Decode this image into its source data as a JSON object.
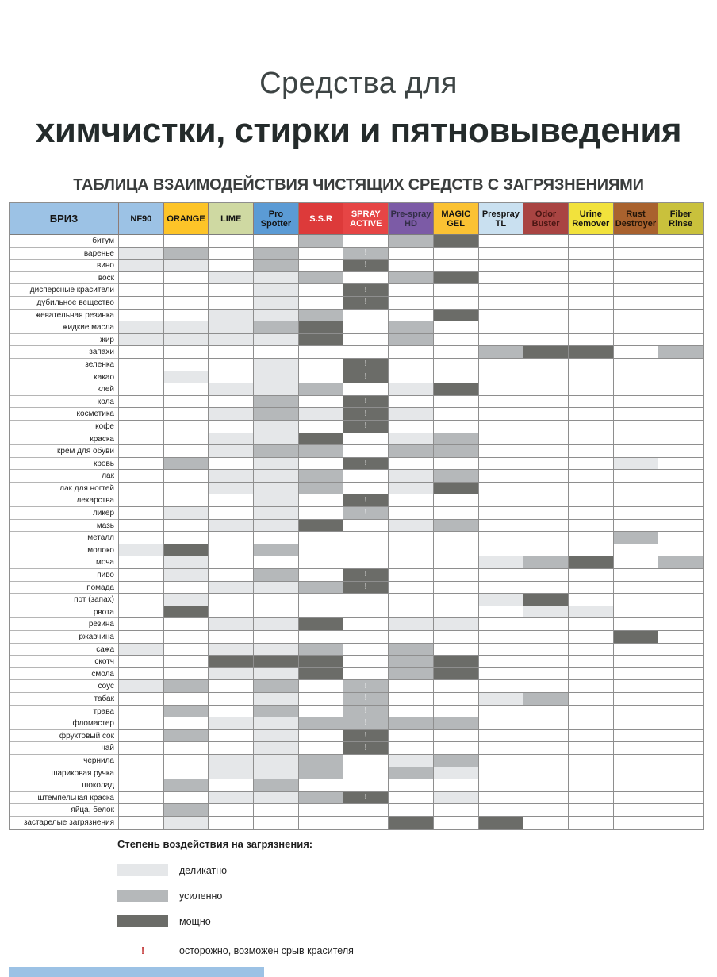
{
  "page": {
    "title_line1": "Средства для",
    "title_line2": "химчистки, стирки и пятновыведения",
    "subtitle": "ТАБЛИЦА ВЗАИМОДЕЙСТВИЯ ЧИСТЯЩИХ СРЕДСТВ С ЗАГРЯЗНЕНИЯМИ"
  },
  "table": {
    "brand_header": "БРИЗ",
    "brand_bg": "#9cc2e5",
    "brand_fg": "#141414",
    "columns": [
      {
        "label": "NF90",
        "bg": "#9cc2e5",
        "fg": "#141414"
      },
      {
        "label": "ORANGE",
        "bg": "#fdc428",
        "fg": "#141414"
      },
      {
        "label": "LIME",
        "bg": "#cfd9a2",
        "fg": "#141414"
      },
      {
        "label": "Pro Spotter",
        "bg": "#5b9bd5",
        "fg": "#141414"
      },
      {
        "label": "S.S.R",
        "bg": "#dd3a3a",
        "fg": "#ffffff"
      },
      {
        "label": "SPRAY ACTIVE",
        "bg": "#e64545",
        "fg": "#ffffff"
      },
      {
        "label": "Pre-spray HD",
        "bg": "#7c5ba6",
        "fg": "#322e47"
      },
      {
        "label": "MAGIC GEL",
        "bg": "#fbc233",
        "fg": "#141414"
      },
      {
        "label": "Prespray TL",
        "bg": "#c9e0f0",
        "fg": "#141414"
      },
      {
        "label": "Odor Buster",
        "bg": "#a94442",
        "fg": "#4a1512"
      },
      {
        "label": "Urine Remover",
        "bg": "#f2e23c",
        "fg": "#141414"
      },
      {
        "label": "Rust Destroyer",
        "bg": "#a9622e",
        "fg": "#231509"
      },
      {
        "label": "Fiber Rinse",
        "bg": "#c9c13c",
        "fg": "#141414"
      }
    ]
  },
  "legend": {
    "heading": "Степень воздействия на загрязнения:",
    "items": [
      {
        "level": "1",
        "label": "деликатно"
      },
      {
        "level": "2",
        "label": "усиленно"
      },
      {
        "level": "3",
        "label": "мощно"
      }
    ],
    "warning": {
      "symbol": "!",
      "label": "осторожно, возможен срыв красителя"
    }
  },
  "colors": {
    "light": "#e5e7e9",
    "medium": "#b5b8ba",
    "dark": "#6b6c68",
    "warning_red": "#c43b3b",
    "header_blue": "#9cc2e5"
  },
  "chart_data": {
    "type": "heatmap",
    "title": "ТАБЛИЦА ВЗАИМОДЕЙСТВИЯ ЧИСТЯЩИХ СРЕДСТВ С ЗАГРЯЗНЕНИЯМИ",
    "value_scale": {
      "0": "нет",
      "1": "деликатно",
      "2": "усиленно",
      "3": "мощно",
      "!": "осторожно, возможен срыв красителя"
    },
    "columns": [
      "NF90",
      "ORANGE",
      "LIME",
      "Pro Spotter",
      "S.S.R",
      "SPRAY ACTIVE",
      "Pre-spray HD",
      "MAGIC GEL",
      "Prespray TL",
      "Odor Buster",
      "Urine Remover",
      "Rust Destroyer",
      "Fiber Rinse"
    ],
    "rows": [
      "битум",
      "варенье",
      "вино",
      "воск",
      "дисперсные красители",
      "дубильное вещество",
      "жевательная резинка",
      "жидкие масла",
      "жир",
      "запахи",
      "зеленка",
      "какао",
      "клей",
      "кола",
      "косметика",
      "кофе",
      "краска",
      "крем для обуви",
      "кровь",
      "лак",
      "лак для ногтей",
      "лекарства",
      "ликер",
      "мазь",
      "металл",
      "молоко",
      "моча",
      "пиво",
      "помада",
      "пот (запах)",
      "рвота",
      "резина",
      "ржавчина",
      "сажа",
      "скотч",
      "смола",
      "соус",
      "табак",
      "трава",
      "фломастер",
      "фруктовый сок",
      "чай",
      "чернила",
      "шариковая ручка",
      "шоколад",
      "штемпельная краска",
      "яйца, белок",
      "застарелые загрязнения"
    ],
    "values": [
      [
        "0",
        "0",
        "0",
        "0",
        "2",
        "0",
        "2",
        "3",
        "0",
        "0",
        "0",
        "0",
        "0"
      ],
      [
        "1",
        "2",
        "0",
        "2",
        "0",
        "2!",
        "0",
        "0",
        "0",
        "0",
        "0",
        "0",
        "0"
      ],
      [
        "1",
        "1",
        "0",
        "2",
        "0",
        "3!",
        "0",
        "0",
        "0",
        "0",
        "0",
        "0",
        "0"
      ],
      [
        "0",
        "0",
        "1",
        "1",
        "2",
        "0",
        "2",
        "3",
        "0",
        "0",
        "0",
        "0",
        "0"
      ],
      [
        "0",
        "0",
        "0",
        "1",
        "0",
        "3!",
        "0",
        "0",
        "0",
        "0",
        "0",
        "0",
        "0"
      ],
      [
        "0",
        "0",
        "0",
        "1",
        "0",
        "3!",
        "0",
        "0",
        "0",
        "0",
        "0",
        "0",
        "0"
      ],
      [
        "0",
        "0",
        "1",
        "1",
        "2",
        "0",
        "0",
        "3",
        "0",
        "0",
        "0",
        "0",
        "0"
      ],
      [
        "1",
        "1",
        "1",
        "2",
        "3",
        "0",
        "2",
        "0",
        "0",
        "0",
        "0",
        "0",
        "0"
      ],
      [
        "1",
        "1",
        "1",
        "1",
        "3",
        "0",
        "2",
        "0",
        "0",
        "0",
        "0",
        "0",
        "0"
      ],
      [
        "0",
        "0",
        "0",
        "0",
        "0",
        "0",
        "0",
        "0",
        "2",
        "3",
        "3",
        "0",
        "2"
      ],
      [
        "0",
        "0",
        "0",
        "1",
        "0",
        "3!",
        "0",
        "0",
        "0",
        "0",
        "0",
        "0",
        "0"
      ],
      [
        "0",
        "1",
        "0",
        "1",
        "0",
        "3!",
        "0",
        "0",
        "0",
        "0",
        "0",
        "0",
        "0"
      ],
      [
        "0",
        "0",
        "1",
        "1",
        "2",
        "0",
        "1",
        "3",
        "0",
        "0",
        "0",
        "0",
        "0"
      ],
      [
        "0",
        "0",
        "0",
        "2",
        "0",
        "3!",
        "0",
        "0",
        "0",
        "0",
        "0",
        "0",
        "0"
      ],
      [
        "0",
        "0",
        "1",
        "2",
        "1",
        "3!",
        "1",
        "0",
        "0",
        "0",
        "0",
        "0",
        "0"
      ],
      [
        "0",
        "0",
        "0",
        "1",
        "0",
        "3!",
        "0",
        "0",
        "0",
        "0",
        "0",
        "0",
        "0"
      ],
      [
        "0",
        "0",
        "1",
        "1",
        "3",
        "0",
        "1",
        "2",
        "0",
        "0",
        "0",
        "0",
        "0"
      ],
      [
        "0",
        "0",
        "1",
        "2",
        "2",
        "0",
        "2",
        "2",
        "0",
        "0",
        "0",
        "0",
        "0"
      ],
      [
        "0",
        "2",
        "0",
        "1",
        "0",
        "3!",
        "0",
        "0",
        "0",
        "0",
        "0",
        "1",
        "0"
      ],
      [
        "0",
        "0",
        "1",
        "1",
        "2",
        "0",
        "1",
        "2",
        "0",
        "0",
        "0",
        "0",
        "0"
      ],
      [
        "0",
        "0",
        "1",
        "1",
        "2",
        "0",
        "1",
        "3",
        "0",
        "0",
        "0",
        "0",
        "0"
      ],
      [
        "0",
        "0",
        "0",
        "1",
        "0",
        "3!",
        "0",
        "0",
        "0",
        "0",
        "0",
        "0",
        "0"
      ],
      [
        "0",
        "1",
        "0",
        "1",
        "0",
        "2!",
        "0",
        "0",
        "0",
        "0",
        "0",
        "0",
        "0"
      ],
      [
        "0",
        "0",
        "1",
        "1",
        "3",
        "0",
        "1",
        "2",
        "0",
        "0",
        "0",
        "0",
        "0"
      ],
      [
        "0",
        "0",
        "0",
        "0",
        "0",
        "0",
        "0",
        "0",
        "0",
        "0",
        "0",
        "2",
        "0"
      ],
      [
        "1",
        "3",
        "0",
        "2",
        "0",
        "0",
        "0",
        "0",
        "0",
        "0",
        "0",
        "0",
        "0"
      ],
      [
        "0",
        "1",
        "0",
        "0",
        "0",
        "0",
        "0",
        "0",
        "1",
        "2",
        "3",
        "0",
        "2"
      ],
      [
        "0",
        "1",
        "0",
        "2",
        "0",
        "3!",
        "0",
        "0",
        "0",
        "0",
        "0",
        "0",
        "0"
      ],
      [
        "0",
        "0",
        "1",
        "1",
        "2",
        "3!",
        "0",
        "0",
        "0",
        "0",
        "0",
        "0",
        "0"
      ],
      [
        "0",
        "1",
        "0",
        "0",
        "0",
        "0",
        "0",
        "0",
        "1",
        "3",
        "0",
        "0",
        "0"
      ],
      [
        "0",
        "3",
        "0",
        "0",
        "0",
        "0",
        "0",
        "0",
        "0",
        "1",
        "1",
        "0",
        "0"
      ],
      [
        "0",
        "0",
        "1",
        "1",
        "3",
        "0",
        "1",
        "1",
        "0",
        "0",
        "0",
        "0",
        "0"
      ],
      [
        "0",
        "0",
        "0",
        "0",
        "0",
        "0",
        "0",
        "0",
        "0",
        "0",
        "0",
        "3",
        "0"
      ],
      [
        "1",
        "0",
        "1",
        "1",
        "2",
        "0",
        "2",
        "0",
        "0",
        "0",
        "0",
        "0",
        "0"
      ],
      [
        "0",
        "0",
        "3",
        "3",
        "3",
        "0",
        "2",
        "3",
        "0",
        "0",
        "0",
        "0",
        "0"
      ],
      [
        "0",
        "0",
        "1",
        "1",
        "3",
        "0",
        "2",
        "3",
        "0",
        "0",
        "0",
        "0",
        "0"
      ],
      [
        "1",
        "2",
        "0",
        "2",
        "0",
        "2!",
        "0",
        "0",
        "0",
        "0",
        "0",
        "0",
        "0"
      ],
      [
        "0",
        "0",
        "0",
        "1",
        "0",
        "2!",
        "0",
        "0",
        "1",
        "2",
        "0",
        "0",
        "0"
      ],
      [
        "0",
        "2",
        "0",
        "2",
        "0",
        "2!",
        "0",
        "0",
        "0",
        "0",
        "0",
        "0",
        "0"
      ],
      [
        "0",
        "0",
        "1",
        "1",
        "2",
        "2!",
        "2",
        "2",
        "0",
        "0",
        "0",
        "0",
        "0"
      ],
      [
        "0",
        "2",
        "0",
        "1",
        "0",
        "3!",
        "0",
        "0",
        "0",
        "0",
        "0",
        "0",
        "0"
      ],
      [
        "0",
        "0",
        "0",
        "1",
        "0",
        "3!",
        "0",
        "0",
        "0",
        "0",
        "0",
        "0",
        "0"
      ],
      [
        "0",
        "0",
        "1",
        "1",
        "2",
        "0",
        "1",
        "2",
        "0",
        "0",
        "0",
        "0",
        "0"
      ],
      [
        "0",
        "0",
        "1",
        "1",
        "2",
        "0",
        "2",
        "1",
        "0",
        "0",
        "0",
        "0",
        "0"
      ],
      [
        "0",
        "2",
        "0",
        "2",
        "0",
        "0",
        "0",
        "0",
        "0",
        "0",
        "0",
        "0",
        "0"
      ],
      [
        "0",
        "0",
        "1",
        "1",
        "2",
        "3!",
        "0",
        "1",
        "0",
        "0",
        "0",
        "0",
        "0"
      ],
      [
        "0",
        "2",
        "0",
        "0",
        "0",
        "0",
        "0",
        "0",
        "0",
        "0",
        "0",
        "0",
        "0"
      ],
      [
        "0",
        "1",
        "0",
        "0",
        "0",
        "0",
        "3",
        "0",
        "3",
        "0",
        "0",
        "0",
        "0"
      ]
    ]
  }
}
